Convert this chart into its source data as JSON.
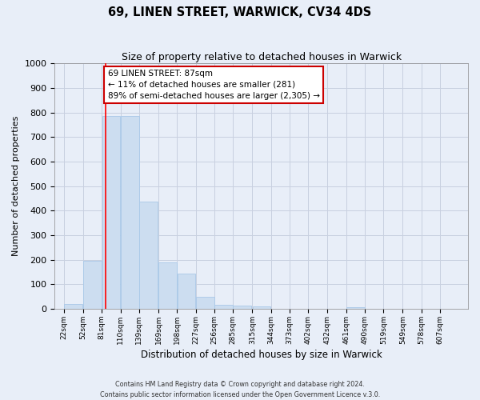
{
  "title": "69, LINEN STREET, WARWICK, CV34 4DS",
  "subtitle": "Size of property relative to detached houses in Warwick",
  "xlabel": "Distribution of detached houses by size in Warwick",
  "ylabel": "Number of detached properties",
  "bin_labels": [
    "22sqm",
    "52sqm",
    "81sqm",
    "110sqm",
    "139sqm",
    "169sqm",
    "198sqm",
    "227sqm",
    "256sqm",
    "285sqm",
    "315sqm",
    "344sqm",
    "373sqm",
    "402sqm",
    "432sqm",
    "461sqm",
    "490sqm",
    "519sqm",
    "549sqm",
    "578sqm",
    "607sqm"
  ],
  "bar_values": [
    20,
    195,
    785,
    785,
    438,
    190,
    142,
    50,
    18,
    14,
    10,
    0,
    0,
    0,
    0,
    8,
    0,
    0,
    0,
    0,
    0
  ],
  "bar_color": "#ccddf0",
  "bar_edgecolor": "#a8c8e8",
  "red_line_sqm": 87,
  "annotation_text": "69 LINEN STREET: 87sqm\n← 11% of detached houses are smaller (281)\n89% of semi-detached houses are larger (2,305) →",
  "annotation_box_facecolor": "#ffffff",
  "annotation_box_edgecolor": "#cc0000",
  "ylim": [
    0,
    1000
  ],
  "yticks": [
    0,
    100,
    200,
    300,
    400,
    500,
    600,
    700,
    800,
    900,
    1000
  ],
  "footer_line1": "Contains HM Land Registry data © Crown copyright and database right 2024.",
  "footer_line2": "Contains public sector information licensed under the Open Government Licence v.3.0.",
  "background_color": "#e8eef8",
  "grid_color": "#c8d0e0"
}
